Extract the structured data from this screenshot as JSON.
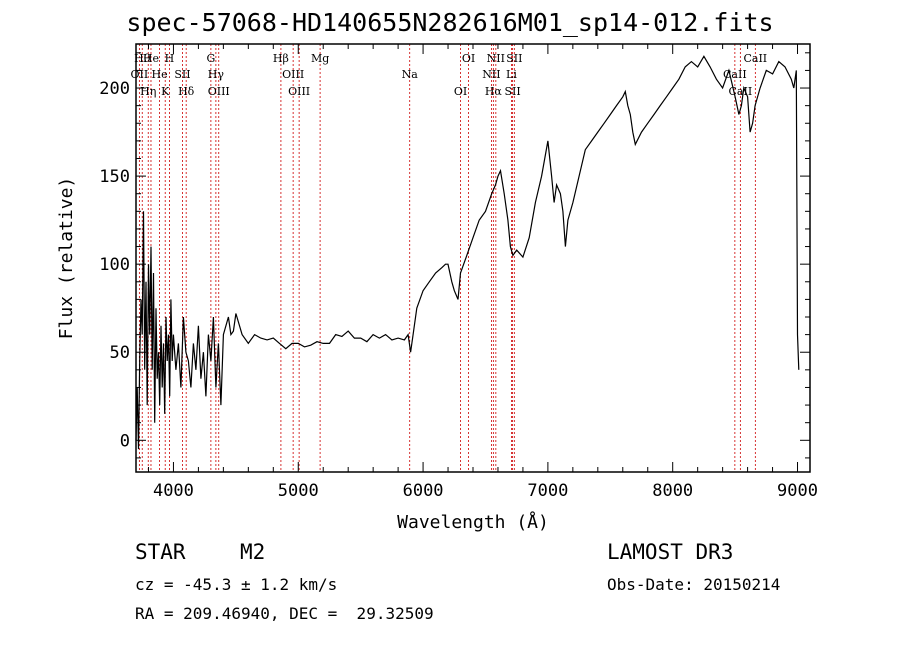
{
  "title": "spec-57068-HD140655N282616M01_sp14-012.fits",
  "info": {
    "object_class": "STAR",
    "subclass": "M2",
    "survey": "LAMOST DR3",
    "cz": "cz = -45.3 ± 1.2 km/s",
    "obs_date": "Obs-Date: 20150214",
    "coords": "RA = 209.46940, DEC =  29.32509"
  },
  "colors": {
    "line": "#000000",
    "marker": "#cc0000",
    "background": "#ffffff"
  },
  "chart_data": {
    "type": "line",
    "title": "spec-57068-HD140655N282616M01_sp14-012.fits",
    "xlabel": "Wavelength (Å)",
    "ylabel": "Flux (relative)",
    "xlim": [
      3700,
      9100
    ],
    "ylim": [
      -18,
      225
    ],
    "x_ticks": [
      4000,
      5000,
      6000,
      7000,
      8000,
      9000
    ],
    "y_ticks": [
      0,
      50,
      100,
      150,
      200
    ],
    "grid": false,
    "series": [
      {
        "x": [
          3700,
          3710,
          3720,
          3730,
          3740,
          3750,
          3760,
          3770,
          3780,
          3790,
          3800,
          3810,
          3820,
          3830,
          3840,
          3850,
          3860,
          3870,
          3880,
          3890,
          3900,
          3910,
          3920,
          3930,
          3940,
          3950,
          3960,
          3970,
          3980,
          3990,
          4000,
          4020,
          4040,
          4060,
          4080,
          4100,
          4120,
          4140,
          4160,
          4180,
          4200,
          4220,
          4240,
          4260,
          4280,
          4300,
          4320,
          4340,
          4360,
          4380,
          4400,
          4420,
          4440,
          4460,
          4480,
          4500,
          4550,
          4600,
          4650,
          4700,
          4750,
          4800,
          4850,
          4900,
          4950,
          5000,
          5050,
          5100,
          5150,
          5200,
          5250,
          5300,
          5350,
          5400,
          5450,
          5500,
          5550,
          5600,
          5650,
          5700,
          5750,
          5800,
          5850,
          5880,
          5900,
          5920,
          5950,
          6000,
          6050,
          6100,
          6150,
          6180,
          6200,
          6230,
          6250,
          6280,
          6300,
          6350,
          6400,
          6450,
          6500,
          6550,
          6580,
          6600,
          6620,
          6650,
          6680,
          6700,
          6720,
          6750,
          6800,
          6850,
          6900,
          6950,
          7000,
          7030,
          7050,
          7070,
          7100,
          7120,
          7140,
          7160,
          7200,
          7250,
          7300,
          7350,
          7400,
          7450,
          7500,
          7550,
          7600,
          7620,
          7640,
          7660,
          7680,
          7700,
          7750,
          7800,
          7850,
          7900,
          7950,
          8000,
          8050,
          8100,
          8150,
          8200,
          8250,
          8300,
          8350,
          8400,
          8450,
          8500,
          8530,
          8550,
          8570,
          8600,
          8620,
          8640,
          8660,
          8700,
          8750,
          8800,
          8850,
          8900,
          8950,
          8970,
          8990,
          9000,
          9010
        ],
        "y": [
          0,
          30,
          -5,
          45,
          80,
          60,
          130,
          40,
          90,
          20,
          100,
          60,
          110,
          40,
          95,
          10,
          75,
          35,
          50,
          20,
          65,
          30,
          55,
          15,
          70,
          45,
          60,
          25,
          80,
          45,
          60,
          40,
          55,
          30,
          70,
          50,
          45,
          30,
          55,
          40,
          65,
          35,
          50,
          25,
          60,
          45,
          70,
          30,
          55,
          20,
          60,
          65,
          70,
          60,
          62,
          72,
          60,
          55,
          60,
          58,
          57,
          58,
          55,
          52,
          55,
          55,
          53,
          54,
          56,
          55,
          55,
          60,
          59,
          62,
          58,
          58,
          56,
          60,
          58,
          60,
          57,
          58,
          57,
          60,
          50,
          60,
          75,
          85,
          90,
          95,
          98,
          100,
          100,
          90,
          85,
          80,
          95,
          105,
          115,
          125,
          130,
          140,
          145,
          150,
          153,
          140,
          125,
          110,
          105,
          108,
          104,
          115,
          135,
          150,
          170,
          150,
          135,
          145,
          140,
          130,
          110,
          125,
          135,
          150,
          165,
          170,
          175,
          180,
          185,
          190,
          195,
          198,
          190,
          185,
          175,
          168,
          175,
          180,
          185,
          190,
          195,
          200,
          205,
          212,
          215,
          212,
          218,
          212,
          205,
          200,
          210,
          195,
          185,
          190,
          200,
          195,
          175,
          180,
          190,
          200,
          210,
          208,
          215,
          212,
          205,
          200,
          210,
          60,
          40
        ]
      }
    ],
    "line_markers": [
      {
        "wavelength": 3750,
        "label": "Hθ"
      },
      {
        "wavelength": 3727,
        "label": "OII"
      },
      {
        "wavelength": 3798,
        "label": "Hη"
      },
      {
        "wavelength": 3820,
        "label": "He"
      },
      {
        "wavelength": 3889,
        "label": "He"
      },
      {
        "wavelength": 3934,
        "label": "K"
      },
      {
        "wavelength": 3968,
        "label": "H"
      },
      {
        "wavelength": 4072,
        "label": "SII"
      },
      {
        "wavelength": 4102,
        "label": "Hδ"
      },
      {
        "wavelength": 4300,
        "label": "G"
      },
      {
        "wavelength": 4340,
        "label": "Hγ"
      },
      {
        "wavelength": 4363,
        "label": "OIII"
      },
      {
        "wavelength": 4861,
        "label": "Hβ"
      },
      {
        "wavelength": 4959,
        "label": "OIII"
      },
      {
        "wavelength": 5007,
        "label": "OIII"
      },
      {
        "wavelength": 5175,
        "label": "Mg"
      },
      {
        "wavelength": 5893,
        "label": "Na"
      },
      {
        "wavelength": 6300,
        "label": "OI"
      },
      {
        "wavelength": 6364,
        "label": "OI"
      },
      {
        "wavelength": 6548,
        "label": "NII"
      },
      {
        "wavelength": 6563,
        "label": "Hα"
      },
      {
        "wavelength": 6583,
        "label": "NII"
      },
      {
        "wavelength": 6708,
        "label": "Li"
      },
      {
        "wavelength": 6717,
        "label": "SII"
      },
      {
        "wavelength": 6731,
        "label": "SII"
      },
      {
        "wavelength": 8498,
        "label": "CaII"
      },
      {
        "wavelength": 8542,
        "label": "CaII"
      },
      {
        "wavelength": 8662,
        "label": "CaII"
      }
    ]
  }
}
